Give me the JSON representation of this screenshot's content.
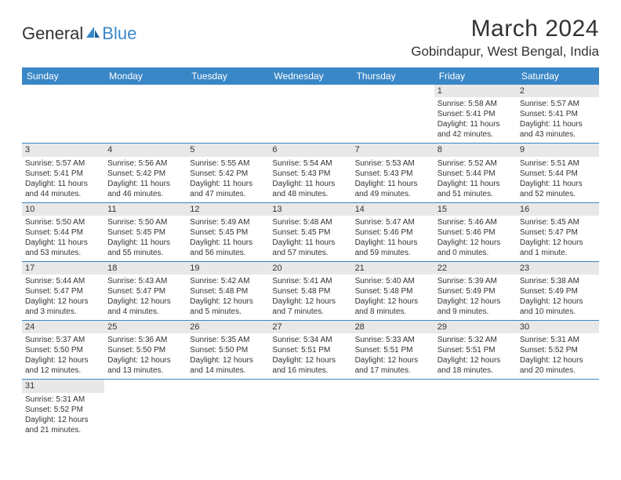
{
  "logo": {
    "part1": "General",
    "part2": "Blue"
  },
  "title": "March 2024",
  "location": "Gobindapur, West Bengal, India",
  "header_bg": "#3a87c7",
  "daynames": [
    "Sunday",
    "Monday",
    "Tuesday",
    "Wednesday",
    "Thursday",
    "Friday",
    "Saturday"
  ],
  "weeks": [
    [
      {
        "n": "",
        "empty": true
      },
      {
        "n": "",
        "empty": true
      },
      {
        "n": "",
        "empty": true
      },
      {
        "n": "",
        "empty": true
      },
      {
        "n": "",
        "empty": true
      },
      {
        "n": "1",
        "sr": "Sunrise: 5:58 AM",
        "ss": "Sunset: 5:41 PM",
        "dl1": "Daylight: 11 hours",
        "dl2": "and 42 minutes."
      },
      {
        "n": "2",
        "sr": "Sunrise: 5:57 AM",
        "ss": "Sunset: 5:41 PM",
        "dl1": "Daylight: 11 hours",
        "dl2": "and 43 minutes."
      }
    ],
    [
      {
        "n": "3",
        "sr": "Sunrise: 5:57 AM",
        "ss": "Sunset: 5:41 PM",
        "dl1": "Daylight: 11 hours",
        "dl2": "and 44 minutes."
      },
      {
        "n": "4",
        "sr": "Sunrise: 5:56 AM",
        "ss": "Sunset: 5:42 PM",
        "dl1": "Daylight: 11 hours",
        "dl2": "and 46 minutes."
      },
      {
        "n": "5",
        "sr": "Sunrise: 5:55 AM",
        "ss": "Sunset: 5:42 PM",
        "dl1": "Daylight: 11 hours",
        "dl2": "and 47 minutes."
      },
      {
        "n": "6",
        "sr": "Sunrise: 5:54 AM",
        "ss": "Sunset: 5:43 PM",
        "dl1": "Daylight: 11 hours",
        "dl2": "and 48 minutes."
      },
      {
        "n": "7",
        "sr": "Sunrise: 5:53 AM",
        "ss": "Sunset: 5:43 PM",
        "dl1": "Daylight: 11 hours",
        "dl2": "and 49 minutes."
      },
      {
        "n": "8",
        "sr": "Sunrise: 5:52 AM",
        "ss": "Sunset: 5:44 PM",
        "dl1": "Daylight: 11 hours",
        "dl2": "and 51 minutes."
      },
      {
        "n": "9",
        "sr": "Sunrise: 5:51 AM",
        "ss": "Sunset: 5:44 PM",
        "dl1": "Daylight: 11 hours",
        "dl2": "and 52 minutes."
      }
    ],
    [
      {
        "n": "10",
        "sr": "Sunrise: 5:50 AM",
        "ss": "Sunset: 5:44 PM",
        "dl1": "Daylight: 11 hours",
        "dl2": "and 53 minutes."
      },
      {
        "n": "11",
        "sr": "Sunrise: 5:50 AM",
        "ss": "Sunset: 5:45 PM",
        "dl1": "Daylight: 11 hours",
        "dl2": "and 55 minutes."
      },
      {
        "n": "12",
        "sr": "Sunrise: 5:49 AM",
        "ss": "Sunset: 5:45 PM",
        "dl1": "Daylight: 11 hours",
        "dl2": "and 56 minutes."
      },
      {
        "n": "13",
        "sr": "Sunrise: 5:48 AM",
        "ss": "Sunset: 5:45 PM",
        "dl1": "Daylight: 11 hours",
        "dl2": "and 57 minutes."
      },
      {
        "n": "14",
        "sr": "Sunrise: 5:47 AM",
        "ss": "Sunset: 5:46 PM",
        "dl1": "Daylight: 11 hours",
        "dl2": "and 59 minutes."
      },
      {
        "n": "15",
        "sr": "Sunrise: 5:46 AM",
        "ss": "Sunset: 5:46 PM",
        "dl1": "Daylight: 12 hours",
        "dl2": "and 0 minutes."
      },
      {
        "n": "16",
        "sr": "Sunrise: 5:45 AM",
        "ss": "Sunset: 5:47 PM",
        "dl1": "Daylight: 12 hours",
        "dl2": "and 1 minute."
      }
    ],
    [
      {
        "n": "17",
        "sr": "Sunrise: 5:44 AM",
        "ss": "Sunset: 5:47 PM",
        "dl1": "Daylight: 12 hours",
        "dl2": "and 3 minutes."
      },
      {
        "n": "18",
        "sr": "Sunrise: 5:43 AM",
        "ss": "Sunset: 5:47 PM",
        "dl1": "Daylight: 12 hours",
        "dl2": "and 4 minutes."
      },
      {
        "n": "19",
        "sr": "Sunrise: 5:42 AM",
        "ss": "Sunset: 5:48 PM",
        "dl1": "Daylight: 12 hours",
        "dl2": "and 5 minutes."
      },
      {
        "n": "20",
        "sr": "Sunrise: 5:41 AM",
        "ss": "Sunset: 5:48 PM",
        "dl1": "Daylight: 12 hours",
        "dl2": "and 7 minutes."
      },
      {
        "n": "21",
        "sr": "Sunrise: 5:40 AM",
        "ss": "Sunset: 5:48 PM",
        "dl1": "Daylight: 12 hours",
        "dl2": "and 8 minutes."
      },
      {
        "n": "22",
        "sr": "Sunrise: 5:39 AM",
        "ss": "Sunset: 5:49 PM",
        "dl1": "Daylight: 12 hours",
        "dl2": "and 9 minutes."
      },
      {
        "n": "23",
        "sr": "Sunrise: 5:38 AM",
        "ss": "Sunset: 5:49 PM",
        "dl1": "Daylight: 12 hours",
        "dl2": "and 10 minutes."
      }
    ],
    [
      {
        "n": "24",
        "sr": "Sunrise: 5:37 AM",
        "ss": "Sunset: 5:50 PM",
        "dl1": "Daylight: 12 hours",
        "dl2": "and 12 minutes."
      },
      {
        "n": "25",
        "sr": "Sunrise: 5:36 AM",
        "ss": "Sunset: 5:50 PM",
        "dl1": "Daylight: 12 hours",
        "dl2": "and 13 minutes."
      },
      {
        "n": "26",
        "sr": "Sunrise: 5:35 AM",
        "ss": "Sunset: 5:50 PM",
        "dl1": "Daylight: 12 hours",
        "dl2": "and 14 minutes."
      },
      {
        "n": "27",
        "sr": "Sunrise: 5:34 AM",
        "ss": "Sunset: 5:51 PM",
        "dl1": "Daylight: 12 hours",
        "dl2": "and 16 minutes."
      },
      {
        "n": "28",
        "sr": "Sunrise: 5:33 AM",
        "ss": "Sunset: 5:51 PM",
        "dl1": "Daylight: 12 hours",
        "dl2": "and 17 minutes."
      },
      {
        "n": "29",
        "sr": "Sunrise: 5:32 AM",
        "ss": "Sunset: 5:51 PM",
        "dl1": "Daylight: 12 hours",
        "dl2": "and 18 minutes."
      },
      {
        "n": "30",
        "sr": "Sunrise: 5:31 AM",
        "ss": "Sunset: 5:52 PM",
        "dl1": "Daylight: 12 hours",
        "dl2": "and 20 minutes."
      }
    ],
    [
      {
        "n": "31",
        "sr": "Sunrise: 5:31 AM",
        "ss": "Sunset: 5:52 PM",
        "dl1": "Daylight: 12 hours",
        "dl2": "and 21 minutes."
      },
      {
        "n": "",
        "empty": true
      },
      {
        "n": "",
        "empty": true
      },
      {
        "n": "",
        "empty": true
      },
      {
        "n": "",
        "empty": true
      },
      {
        "n": "",
        "empty": true
      },
      {
        "n": "",
        "empty": true
      }
    ]
  ]
}
